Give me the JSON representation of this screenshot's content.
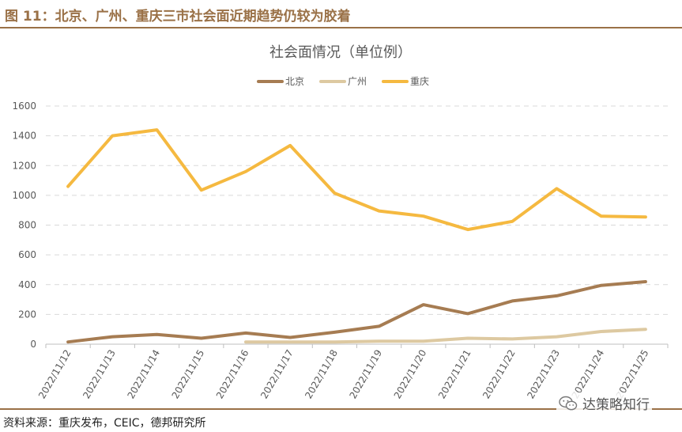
{
  "figure_title": "图 11：北京、广州、重庆三市社会面近期趋势仍较为胶着",
  "source": "资料来源：重庆发布，CEIC，德邦研究所",
  "watermark": {
    "text": "达策略知行",
    "icon": "wechat-icon"
  },
  "colors": {
    "accent": "#9a7147"
  },
  "chart_data": {
    "type": "line",
    "title": "社会面情况（单位例）",
    "xlabel": "",
    "ylabel": "",
    "ylim": [
      0,
      1600
    ],
    "yticks": [
      "0",
      "200",
      "400",
      "600",
      "800",
      "1000",
      "1200",
      "1400",
      "1600"
    ],
    "grid": true,
    "legend_position": "top-center",
    "categories": [
      "2022/11/12",
      "2022/11/13",
      "2022/11/14",
      "2022/11/15",
      "2022/11/16",
      "2022/11/17",
      "2022/11/18",
      "2022/11/19",
      "2022/11/20",
      "2022/11/21",
      "2022/11/22",
      "2022/11/23",
      "2022/11/24",
      "2022/11/25"
    ],
    "series": [
      {
        "name": "北京",
        "color": "#a67c52",
        "values": [
          15,
          50,
          65,
          40,
          75,
          45,
          80,
          120,
          265,
          205,
          290,
          325,
          395,
          420
        ]
      },
      {
        "name": "广州",
        "color": "#ddc9a1",
        "values": [
          null,
          null,
          null,
          null,
          15,
          15,
          15,
          20,
          20,
          40,
          35,
          50,
          85,
          100
        ]
      },
      {
        "name": "重庆",
        "color": "#f5b940",
        "values": [
          1060,
          1400,
          1440,
          1035,
          1160,
          1335,
          1015,
          895,
          860,
          770,
          825,
          1045,
          860,
          855
        ]
      }
    ]
  }
}
